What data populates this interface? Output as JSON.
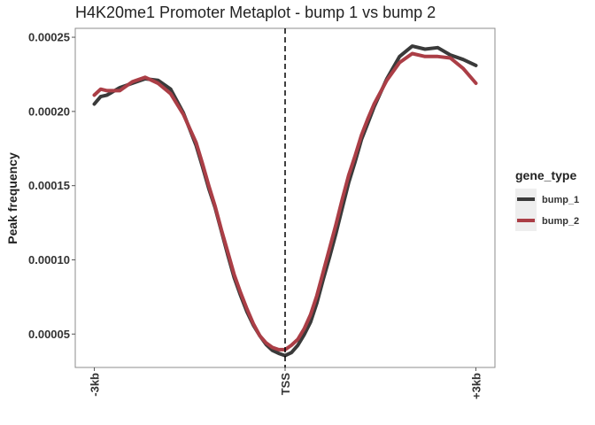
{
  "chart_data": {
    "type": "line",
    "title": "H4K20me1 Promoter Metaplot - bump 1 vs bump 2",
    "xlabel": "",
    "ylabel": "Peak frequency",
    "x_ticks": [
      {
        "value": -3000,
        "label": "-3kb"
      },
      {
        "value": 0,
        "label": "TSS"
      },
      {
        "value": 3000,
        "label": "+3kb"
      }
    ],
    "y_ticks": [
      {
        "value": 5e-05,
        "label": "0.00005"
      },
      {
        "value": 0.0001,
        "label": "0.00010"
      },
      {
        "value": 0.00015,
        "label": "0.00015"
      },
      {
        "value": 0.0002,
        "label": "0.00020"
      },
      {
        "value": 0.00025,
        "label": "0.00025"
      }
    ],
    "xlim": [
      -3300,
      3300
    ],
    "ylim": [
      2.75e-05,
      0.000256
    ],
    "vline_x": 0,
    "legend": {
      "title": "gene_type",
      "placement": "right"
    },
    "grid": false,
    "series": [
      {
        "name": "bump_1",
        "color": "#3a3a3a",
        "x": [
          -3000,
          -2900,
          -2800,
          -2600,
          -2400,
          -2200,
          -2000,
          -1800,
          -1600,
          -1400,
          -1300,
          -1200,
          -1100,
          -1000,
          -900,
          -800,
          -700,
          -600,
          -500,
          -400,
          -300,
          -200,
          -100,
          0,
          100,
          200,
          300,
          400,
          500,
          600,
          700,
          800,
          900,
          1000,
          1100,
          1200,
          1300,
          1400,
          1600,
          1800,
          2000,
          2200,
          2400,
          2600,
          2800,
          3000
        ],
        "y": [
          0.000205,
          0.00021,
          0.000211,
          0.000216,
          0.000219,
          0.000222,
          0.000221,
          0.000215,
          0.000199,
          0.000177,
          0.000163,
          0.000148,
          0.000135,
          0.000119,
          0.000103,
          8.8e-05,
          7.6e-05,
          6.5e-05,
          5.6e-05,
          4.9e-05,
          4.3e-05,
          3.9e-05,
          3.7e-05,
          3.55e-05,
          3.75e-05,
          4.25e-05,
          4.95e-05,
          5.8e-05,
          7.1e-05,
          8.7e-05,
          0.000102,
          0.000118,
          0.000135,
          0.000152,
          0.000166,
          0.000181,
          0.000192,
          0.000203,
          0.000222,
          0.000237,
          0.000244,
          0.000242,
          0.000243,
          0.000238,
          0.000235,
          0.000231
        ]
      },
      {
        "name": "bump_2",
        "color": "#ab3e46",
        "x": [
          -3000,
          -2900,
          -2800,
          -2600,
          -2400,
          -2200,
          -2000,
          -1800,
          -1600,
          -1400,
          -1300,
          -1200,
          -1100,
          -1000,
          -900,
          -800,
          -700,
          -600,
          -500,
          -400,
          -300,
          -200,
          -100,
          0,
          100,
          200,
          300,
          400,
          500,
          600,
          700,
          800,
          900,
          1000,
          1100,
          1200,
          1300,
          1400,
          1600,
          1800,
          2000,
          2200,
          2400,
          2600,
          2800,
          3000
        ],
        "y": [
          0.000211,
          0.000215,
          0.000214,
          0.000214,
          0.00022,
          0.000223,
          0.000219,
          0.000212,
          0.000198,
          0.000179,
          0.000165,
          0.00015,
          0.000136,
          0.00012,
          0.000105,
          9e-05,
          7.8e-05,
          6.7e-05,
          5.7e-05,
          4.9e-05,
          4.4e-05,
          4.1e-05,
          3.95e-05,
          3.95e-05,
          4.25e-05,
          4.65e-05,
          5.35e-05,
          6.3e-05,
          7.6e-05,
          9.2e-05,
          0.000108,
          0.000124,
          0.000141,
          0.000157,
          0.00017,
          0.000184,
          0.000195,
          0.000205,
          0.000221,
          0.000233,
          0.000239,
          0.000237,
          0.000237,
          0.000236,
          0.000229,
          0.000219
        ]
      }
    ]
  }
}
